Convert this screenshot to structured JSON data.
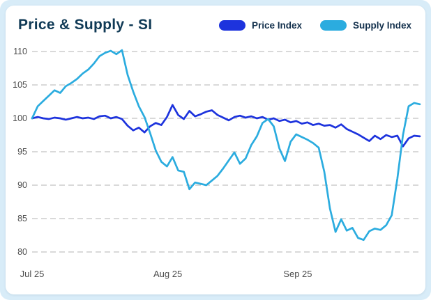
{
  "card": {
    "title": "Price & Supply - SI"
  },
  "colors": {
    "page_background": "#d8ecf8",
    "card_background": "#ffffff",
    "title_text": "#103a56",
    "axis_text": "#4d4d4d",
    "gridline": "#b3b3b3",
    "price_line": "#1d33dd",
    "supply_line": "#2bacdf"
  },
  "chart_data": {
    "type": "line",
    "title": "Price & Supply - SI",
    "xlabel": "",
    "ylabel": "",
    "ylim": [
      80,
      110
    ],
    "y_ticks": [
      110,
      105,
      100,
      95,
      90,
      85,
      80
    ],
    "x_ticks": [
      {
        "label": "Jul 25",
        "pos": 0.0
      },
      {
        "label": "Aug 25",
        "pos": 0.35
      },
      {
        "label": "Sep 25",
        "pos": 0.685
      }
    ],
    "grid": "horizontal-dashed",
    "legend_position": "top-right",
    "series": [
      {
        "name": "Price Index",
        "color": "#1d33dd",
        "values": [
          100.0,
          100.2,
          100.0,
          99.9,
          100.1,
          100.0,
          99.8,
          100.0,
          100.2,
          100.0,
          100.1,
          99.9,
          100.3,
          100.4,
          100.0,
          100.2,
          99.9,
          98.9,
          98.2,
          98.6,
          97.9,
          98.8,
          99.3,
          99.0,
          100.2,
          102.0,
          100.5,
          99.9,
          101.1,
          100.3,
          100.6,
          101.0,
          101.2,
          100.5,
          100.1,
          99.7,
          100.2,
          100.4,
          100.1,
          100.3,
          100.0,
          100.2,
          99.8,
          100.0,
          99.6,
          99.8,
          99.4,
          99.6,
          99.2,
          99.4,
          99.0,
          99.2,
          98.9,
          99.0,
          98.6,
          99.1,
          98.4,
          98.0,
          97.6,
          97.1,
          96.6,
          97.4,
          96.9,
          97.5,
          97.2,
          97.4,
          95.8,
          97.0,
          97.4,
          97.3
        ]
      },
      {
        "name": "Supply Index",
        "color": "#2bacdf",
        "values": [
          100.0,
          101.8,
          102.6,
          103.4,
          104.2,
          103.8,
          104.8,
          105.3,
          105.9,
          106.7,
          107.3,
          108.2,
          109.3,
          109.8,
          110.1,
          109.6,
          110.2,
          106.5,
          104.0,
          101.8,
          100.2,
          97.8,
          95.2,
          93.5,
          92.8,
          94.2,
          92.2,
          92.0,
          89.4,
          90.4,
          90.2,
          90.0,
          90.7,
          91.4,
          92.5,
          93.7,
          94.9,
          93.2,
          94.0,
          96.0,
          97.3,
          99.3,
          99.9,
          98.8,
          95.5,
          93.6,
          96.5,
          97.6,
          97.2,
          96.8,
          96.3,
          95.6,
          92.0,
          86.5,
          83.0,
          84.9,
          83.2,
          83.6,
          82.1,
          81.8,
          83.1,
          83.5,
          83.3,
          84.0,
          85.5,
          91.0,
          97.5,
          101.8,
          102.3,
          102.1
        ]
      }
    ]
  }
}
